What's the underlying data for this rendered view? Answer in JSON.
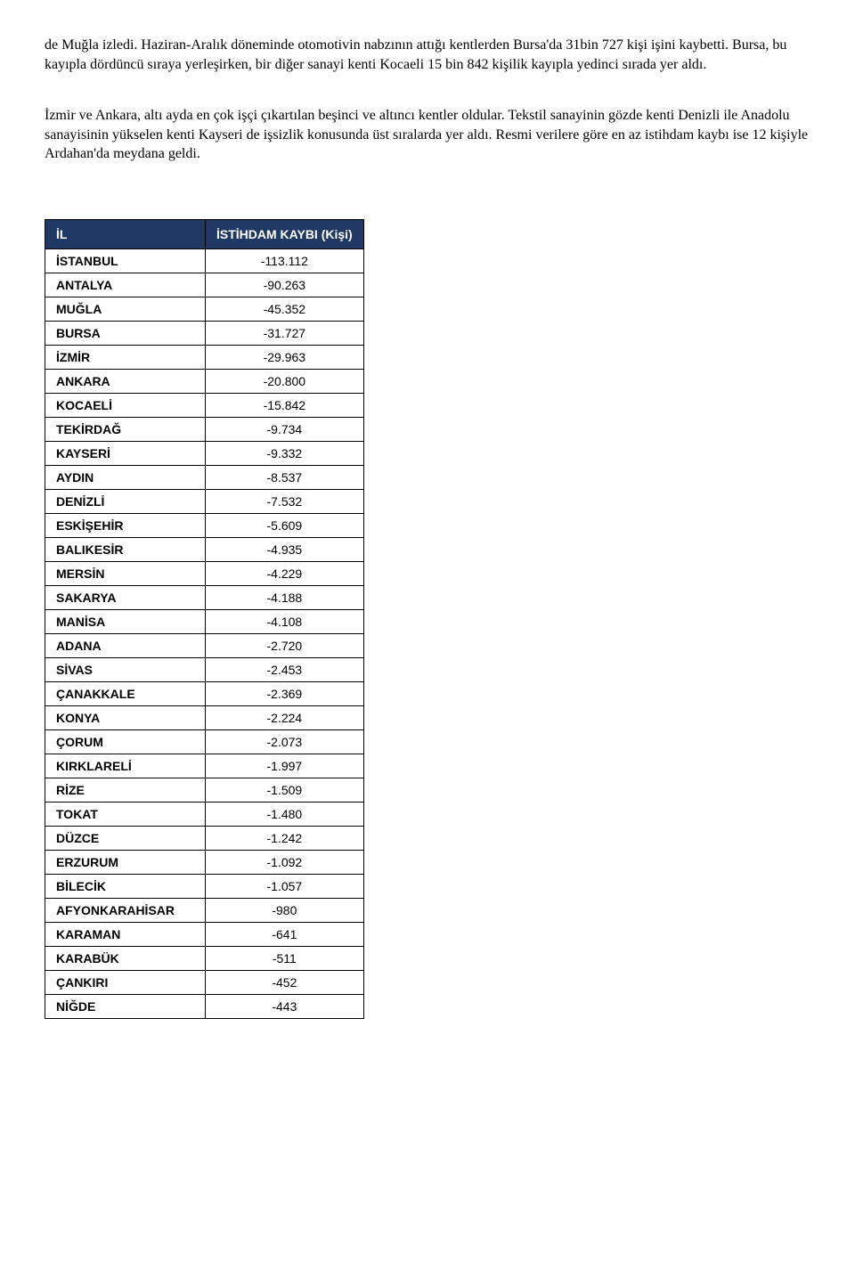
{
  "paragraphs": {
    "p1": "de Muğla izledi. Haziran-Aralık döneminde otomotivin nabzının attığı kentlerden Bursa'da 31bin 727 kişi işini kaybetti. Bursa, bu kayıpla dördüncü sıraya yerleşirken, bir diğer sanayi kenti Kocaeli 15 bin 842 kişilik kayıpla yedinci sırada yer aldı.",
    "p2": "İzmir ve Ankara, altı ayda en çok işçi çıkartılan beşinci ve altıncı kentler oldular. Tekstil sanayinin gözde kenti Denizli ile Anadolu sanayisinin yükselen kenti Kayseri de işsizlik konusunda üst sıralarda yer aldı. Resmi verilere göre en az istihdam kaybı ise 12 kişiyle Ardahan'da meydana geldi."
  },
  "table": {
    "headers": {
      "col1": "İL",
      "col2": "İSTİHDAM KAYBI (Kişi)"
    },
    "rows": [
      {
        "il": "İSTANBUL",
        "val": "-113.112"
      },
      {
        "il": "ANTALYA",
        "val": "-90.263"
      },
      {
        "il": "MUĞLA",
        "val": "-45.352"
      },
      {
        "il": "BURSA",
        "val": "-31.727"
      },
      {
        "il": "İZMİR",
        "val": "-29.963"
      },
      {
        "il": "ANKARA",
        "val": "-20.800"
      },
      {
        "il": "KOCAELİ",
        "val": "-15.842"
      },
      {
        "il": "TEKİRDAĞ",
        "val": "-9.734"
      },
      {
        "il": "KAYSERİ",
        "val": "-9.332"
      },
      {
        "il": "AYDIN",
        "val": "-8.537"
      },
      {
        "il": "DENİZLİ",
        "val": "-7.532"
      },
      {
        "il": "ESKİŞEHİR",
        "val": "-5.609"
      },
      {
        "il": "BALIKESİR",
        "val": "-4.935"
      },
      {
        "il": "MERSİN",
        "val": "-4.229"
      },
      {
        "il": "SAKARYA",
        "val": "-4.188"
      },
      {
        "il": "MANİSA",
        "val": "-4.108"
      },
      {
        "il": "ADANA",
        "val": "-2.720"
      },
      {
        "il": "SİVAS",
        "val": "-2.453"
      },
      {
        "il": "ÇANAKKALE",
        "val": "-2.369"
      },
      {
        "il": "KONYA",
        "val": "-2.224"
      },
      {
        "il": "ÇORUM",
        "val": "-2.073"
      },
      {
        "il": "KIRKLARELİ",
        "val": "-1.997"
      },
      {
        "il": "RİZE",
        "val": "-1.509"
      },
      {
        "il": "TOKAT",
        "val": "-1.480"
      },
      {
        "il": "DÜZCE",
        "val": "-1.242"
      },
      {
        "il": "ERZURUM",
        "val": "-1.092"
      },
      {
        "il": "BİLECİK",
        "val": "-1.057"
      },
      {
        "il": "AFYONKARAHİSAR",
        "val": "-980"
      },
      {
        "il": "KARAMAN",
        "val": "-641"
      },
      {
        "il": "KARABÜK",
        "val": "-511"
      },
      {
        "il": "ÇANKIRI",
        "val": "-452"
      },
      {
        "il": "NİĞDE",
        "val": "-443"
      }
    ]
  }
}
